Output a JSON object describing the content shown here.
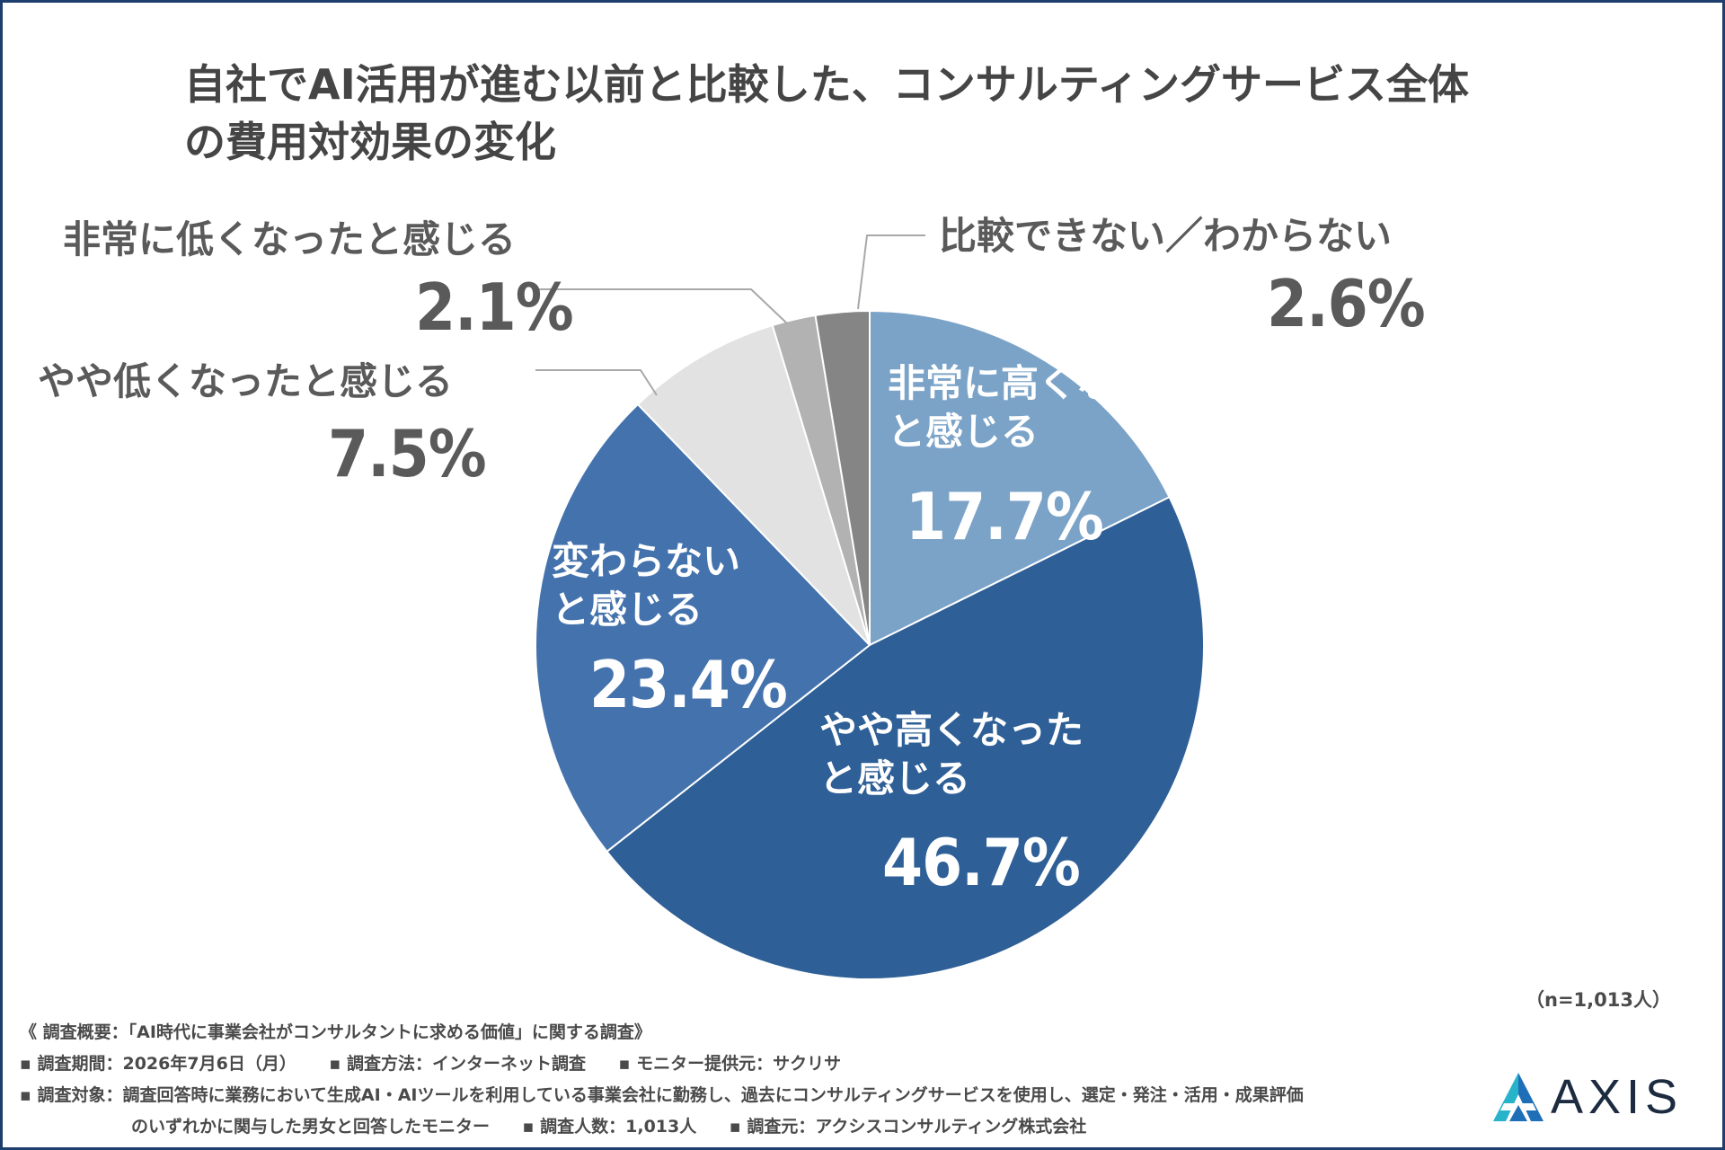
{
  "chart_data": {
    "type": "pie",
    "title": [
      "自社でAI活用が進む以前と比較した、コンサルティングサービス全体",
      "の費用対効果の変化"
    ],
    "start_angle_deg": 0,
    "direction": "clockwise",
    "slices": [
      {
        "label": [
          "非常に高くなった",
          "と感じる"
        ],
        "value": 17.7,
        "display": "17.7%",
        "color": "#7ba3c8"
      },
      {
        "label": [
          "やや高くなった",
          "と感じる"
        ],
        "value": 46.7,
        "display": "46.7%",
        "color": "#2e5f96"
      },
      {
        "label": [
          "変わらない",
          "と感じる"
        ],
        "value": 23.4,
        "display": "23.4%",
        "color": "#4472ad"
      },
      {
        "label": [
          "やや低くなったと感じる"
        ],
        "value": 7.5,
        "display": "7.5%",
        "color": "#e2e2e2"
      },
      {
        "label": [
          "非常に低くなったと感じる"
        ],
        "value": 2.1,
        "display": "2.1%",
        "color": "#b2b2b2"
      },
      {
        "label": [
          "比較できない／わからない"
        ],
        "value": 2.6,
        "display": "2.6%",
        "color": "#858585"
      }
    ]
  },
  "sample_size": "（n=1,013人）",
  "survey": {
    "line1": "《 調査概要：「AI時代に事業会社がコンサルタントに求める価値」に関する調査》",
    "period": "▪ 調査期間：2026年7月6日（月）",
    "method": "▪ 調査方法：インターネット調査",
    "provider": "▪ モニター提供元：サクリサ",
    "target_1": "▪ 調査対象：調査回答時に業務において生成AI・AIツールを利用している事業会社に勤務し、過去にコンサルティングサービスを使用し、選定・発注・活用・成果評価",
    "target_2": "のいずれかに関与した男女と回答したモニター",
    "count": "▪ 調査人数：1,013人",
    "source": "▪ 調査元：アクシスコンサルティング株式会社"
  },
  "logo": {
    "text": "AXIS",
    "colors": [
      "#1f6fb8",
      "#27b3c9",
      "#1c2b3f"
    ]
  }
}
